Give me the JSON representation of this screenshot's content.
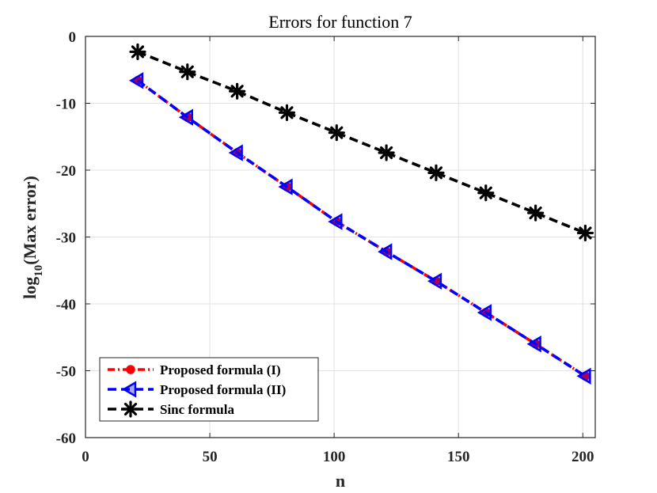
{
  "chart_data": {
    "type": "line",
    "title": "Errors for function 7",
    "xlabel": "n",
    "ylabel": {
      "main": "log",
      "sub": "10",
      "rest": "(Max error)"
    },
    "xlim": [
      0,
      205
    ],
    "ylim": [
      -60,
      0
    ],
    "xticks": [
      0,
      50,
      100,
      150,
      200
    ],
    "yticks": [
      0,
      -10,
      -20,
      -30,
      -40,
      -50,
      -60
    ],
    "grid": true,
    "legend_position": "bottom-left",
    "series": [
      {
        "name": "Proposed formula (I)",
        "color": "#ff0000",
        "marker": "circle",
        "line_style": "dash-dot",
        "x": [
          21,
          41,
          61,
          81,
          101,
          121,
          141,
          161,
          181,
          201
        ],
        "y": [
          -6.6,
          -12.1,
          -17.4,
          -22.5,
          -27.7,
          -32.2,
          -36.6,
          -41.3,
          -46.0,
          -50.8
        ]
      },
      {
        "name": "Proposed formula (II)",
        "color": "#0000ff",
        "marker": "triangle-left",
        "line_style": "dashed",
        "x": [
          21,
          41,
          61,
          81,
          101,
          121,
          141,
          161,
          181,
          201
        ],
        "y": [
          -6.6,
          -12.1,
          -17.4,
          -22.5,
          -27.7,
          -32.2,
          -36.6,
          -41.3,
          -46.0,
          -50.8
        ]
      },
      {
        "name": "Sinc formula",
        "color": "#000000",
        "marker": "asterisk",
        "line_style": "dashed",
        "x": [
          21,
          41,
          61,
          81,
          101,
          121,
          141,
          161,
          181,
          201
        ],
        "y": [
          -2.3,
          -5.3,
          -8.2,
          -11.4,
          -14.4,
          -17.4,
          -20.4,
          -23.4,
          -26.4,
          -29.4
        ]
      }
    ]
  }
}
